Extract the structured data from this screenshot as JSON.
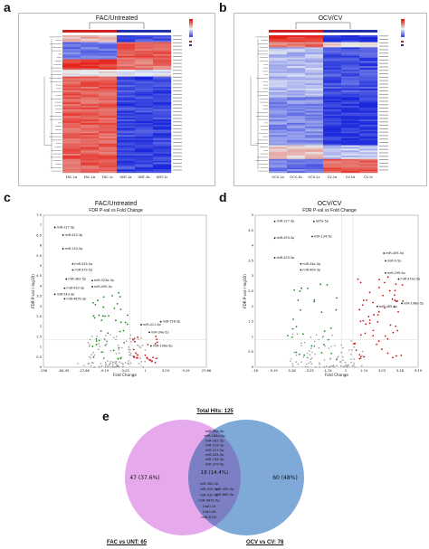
{
  "panels": {
    "a": {
      "letter": "a",
      "title": "FAC/Untreated",
      "columns": [
        "FAC-1a",
        "FAC-1b",
        "FAC-1c",
        "UNT-1a",
        "UNT-1b",
        "UNT-1c"
      ]
    },
    "b": {
      "letter": "b",
      "title": "OCV/CV",
      "columns": [
        "OCV-1a",
        "OCV-1b",
        "OCV-1c",
        "CV-1a",
        "CV-1b",
        "CV-1c"
      ]
    },
    "c": {
      "letter": "c",
      "title": "FAC/Untreated",
      "subtitle": "FDR P-val vs Fold Change",
      "xlabel": "Fold Change",
      "ylabel": "FDR P-val (-log10)",
      "xticks": [
        "-256",
        "-84.45",
        "-27.86",
        "-9.19",
        "-3.03",
        "1",
        "3.03",
        "9.19",
        "27.86"
      ],
      "yticks": [
        "0",
        "0.5",
        "1",
        "1.5",
        "2",
        "2.5",
        "3",
        "3.5",
        "4",
        "4.5",
        "5",
        "5.5",
        "6",
        "6.5",
        "7",
        "7.5"
      ]
    },
    "d": {
      "letter": "d",
      "title": "OCV/CV",
      "subtitle": "FDR P-val vs Fold Change",
      "xlabel": "Fold Change",
      "ylabel": "FDR P-val (-log10)",
      "xticks": [
        "-16",
        "-9.19",
        "-5.28",
        "-3.03",
        "-1.74",
        "1",
        "1.74",
        "3.03",
        "5.28",
        "9.19"
      ],
      "yticks": [
        "0",
        "0.5",
        "1",
        "1.5",
        "2",
        "2.5",
        "3",
        "3.5",
        "4",
        "4.5",
        "5"
      ]
    },
    "e": {
      "letter": "e"
    }
  },
  "venn": {
    "total_hits": "Total Hits: 125",
    "left_only": "47 (37.6%)",
    "right_only": "60 (48%)",
    "overlap": "18 (14.4%)",
    "left_label": "FAC vs UNT: 65",
    "right_label": "OCV vs CV: 78",
    "overlap_items_top": [
      "miR-34a-5p",
      "miR-186a-5p",
      "miR-182-5p",
      "miR-219-5p",
      "miR-127-5p",
      "miR-433-3p",
      "miR-134-5p",
      "miR-379-5p"
    ],
    "overlap_items_bottom": [
      "miR-382-5p",
      "miR-455-5p",
      "miR-432-5p",
      "miR-487b-5p",
      "14q0-14",
      "14q0-26",
      "miR-6741"
    ],
    "overlap_items_right": [
      "miR-409-5p",
      "miR-665-5p"
    ]
  },
  "volcano_c_labels": [
    "miR-127-3p",
    "miR-433-3p",
    "miR-134-5p",
    "miR-433-5p",
    "miR-379-5p",
    "miR-382-5p",
    "miR-410-3p",
    "miR-323a-3p",
    "miR-495-3p",
    "miR-487b-3p",
    "miR-543-3p",
    "miR-758-3p",
    "miR-411-5p",
    "miR-34a-5p",
    "miR-196a-5p"
  ],
  "volcano_d_labels": [
    "miR-127-3p",
    "let7a-5p",
    "miR-493-3p",
    "miR-134-5p",
    "miR-433-5p",
    "miR-409-5p",
    "miR-9-5p",
    "miR-34a-5p",
    "miR-409-3p",
    "miR-299-5p",
    "miR-379a-5p",
    "miR-196a-5p",
    "miR-485-5p"
  ],
  "colors": {
    "up": "#cc1111",
    "down": "#1a8a1a",
    "ns": "#9a9a9a",
    "venn_left": "#e6a9ec",
    "venn_right": "#7fa9d6",
    "venn_overlap": "#7d7fc4"
  }
}
